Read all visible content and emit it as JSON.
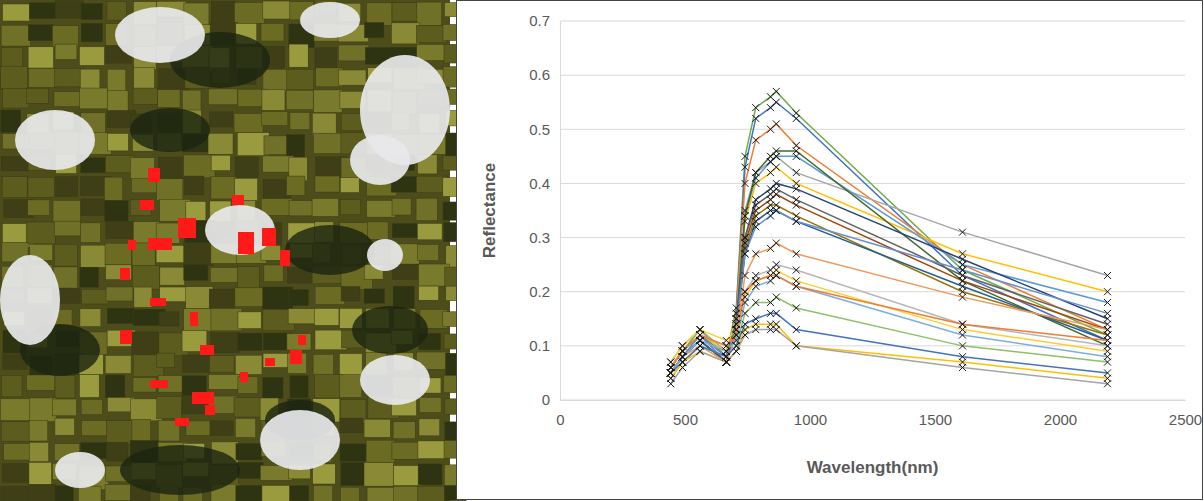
{
  "chart_data": {
    "type": "line",
    "marker": "x",
    "grid": true,
    "x_label": "Wavelength(nm)",
    "y_label": "Reflectance",
    "xlim": [
      0,
      2500
    ],
    "xticks": [
      0,
      500,
      1000,
      1500,
      2000,
      2500
    ],
    "ylim": [
      0,
      0.7
    ],
    "yticks": [
      0,
      0.1,
      0.2,
      0.3,
      0.4,
      0.5,
      0.6,
      0.7
    ],
    "x": [
      443,
      490,
      560,
      665,
      705,
      740,
      783,
      842,
      865,
      945,
      1610,
      2190
    ],
    "series": [
      {
        "color": "#70ad47",
        "values": [
          0.06,
          0.09,
          0.13,
          0.08,
          0.17,
          0.45,
          0.54,
          0.56,
          0.57,
          0.53,
          0.24,
          0.12
        ]
      },
      {
        "color": "#4472c4",
        "values": [
          0.05,
          0.08,
          0.12,
          0.07,
          0.16,
          0.43,
          0.52,
          0.54,
          0.55,
          0.52,
          0.23,
          0.11
        ]
      },
      {
        "color": "#ed7d31",
        "values": [
          0.06,
          0.09,
          0.12,
          0.08,
          0.16,
          0.4,
          0.48,
          0.5,
          0.51,
          0.47,
          0.25,
          0.13
        ]
      },
      {
        "color": "#a5a5a5",
        "values": [
          0.07,
          0.1,
          0.13,
          0.09,
          0.15,
          0.35,
          0.42,
          0.44,
          0.45,
          0.42,
          0.31,
          0.23
        ]
      },
      {
        "color": "#ffc000",
        "values": [
          0.06,
          0.09,
          0.12,
          0.09,
          0.15,
          0.33,
          0.4,
          0.42,
          0.43,
          0.4,
          0.27,
          0.2
        ]
      },
      {
        "color": "#5b9bd5",
        "values": [
          0.05,
          0.08,
          0.12,
          0.07,
          0.15,
          0.34,
          0.41,
          0.44,
          0.45,
          0.45,
          0.25,
          0.18
        ]
      },
      {
        "color": "#43682b",
        "values": [
          0.05,
          0.08,
          0.11,
          0.07,
          0.14,
          0.34,
          0.42,
          0.45,
          0.46,
          0.46,
          0.22,
          0.1
        ]
      },
      {
        "color": "#264478",
        "values": [
          0.05,
          0.08,
          0.11,
          0.07,
          0.14,
          0.3,
          0.37,
          0.39,
          0.4,
          0.39,
          0.26,
          0.15
        ]
      },
      {
        "color": "#9e480e",
        "values": [
          0.06,
          0.09,
          0.12,
          0.08,
          0.14,
          0.29,
          0.35,
          0.37,
          0.38,
          0.36,
          0.22,
          0.13
        ]
      },
      {
        "color": "#636363",
        "values": [
          0.06,
          0.09,
          0.12,
          0.08,
          0.14,
          0.3,
          0.36,
          0.38,
          0.39,
          0.37,
          0.23,
          0.14
        ]
      },
      {
        "color": "#997300",
        "values": [
          0.05,
          0.08,
          0.11,
          0.07,
          0.13,
          0.28,
          0.34,
          0.36,
          0.36,
          0.34,
          0.2,
          0.12
        ]
      },
      {
        "color": "#255e91",
        "values": [
          0.05,
          0.08,
          0.11,
          0.07,
          0.13,
          0.27,
          0.33,
          0.35,
          0.35,
          0.33,
          0.21,
          0.11
        ]
      },
      {
        "color": "#698ed0",
        "values": [
          0.06,
          0.09,
          0.12,
          0.08,
          0.13,
          0.27,
          0.32,
          0.34,
          0.35,
          0.33,
          0.24,
          0.16
        ]
      },
      {
        "color": "#f1975a",
        "values": [
          0.05,
          0.08,
          0.1,
          0.07,
          0.12,
          0.23,
          0.27,
          0.28,
          0.29,
          0.27,
          0.19,
          0.13
        ]
      },
      {
        "color": "#b7b7b7",
        "values": [
          0.06,
          0.09,
          0.12,
          0.1,
          0.12,
          0.2,
          0.23,
          0.24,
          0.25,
          0.24,
          0.14,
          0.1
        ]
      },
      {
        "color": "#ffcd33",
        "values": [
          0.07,
          0.1,
          0.13,
          0.11,
          0.13,
          0.19,
          0.22,
          0.23,
          0.24,
          0.22,
          0.13,
          0.09
        ]
      },
      {
        "color": "#7cafdd",
        "values": [
          0.05,
          0.08,
          0.11,
          0.09,
          0.11,
          0.18,
          0.21,
          0.22,
          0.23,
          0.21,
          0.12,
          0.08
        ]
      },
      {
        "color": "#8cc168",
        "values": [
          0.04,
          0.07,
          0.1,
          0.08,
          0.1,
          0.16,
          0.18,
          0.18,
          0.19,
          0.17,
          0.1,
          0.07
        ]
      },
      {
        "color": "#ed7d31",
        "values": [
          0.06,
          0.09,
          0.12,
          0.1,
          0.12,
          0.2,
          0.22,
          0.23,
          0.23,
          0.21,
          0.14,
          0.11
        ]
      },
      {
        "color": "#4472c4",
        "values": [
          0.05,
          0.07,
          0.1,
          0.08,
          0.1,
          0.14,
          0.15,
          0.16,
          0.16,
          0.13,
          0.08,
          0.05
        ]
      },
      {
        "color": "#ffc000",
        "values": [
          0.04,
          0.07,
          0.09,
          0.07,
          0.09,
          0.13,
          0.14,
          0.14,
          0.14,
          0.1,
          0.07,
          0.04
        ]
      },
      {
        "color": "#a5a5a5",
        "values": [
          0.03,
          0.06,
          0.09,
          0.07,
          0.09,
          0.12,
          0.13,
          0.13,
          0.13,
          0.1,
          0.06,
          0.03
        ]
      }
    ]
  }
}
